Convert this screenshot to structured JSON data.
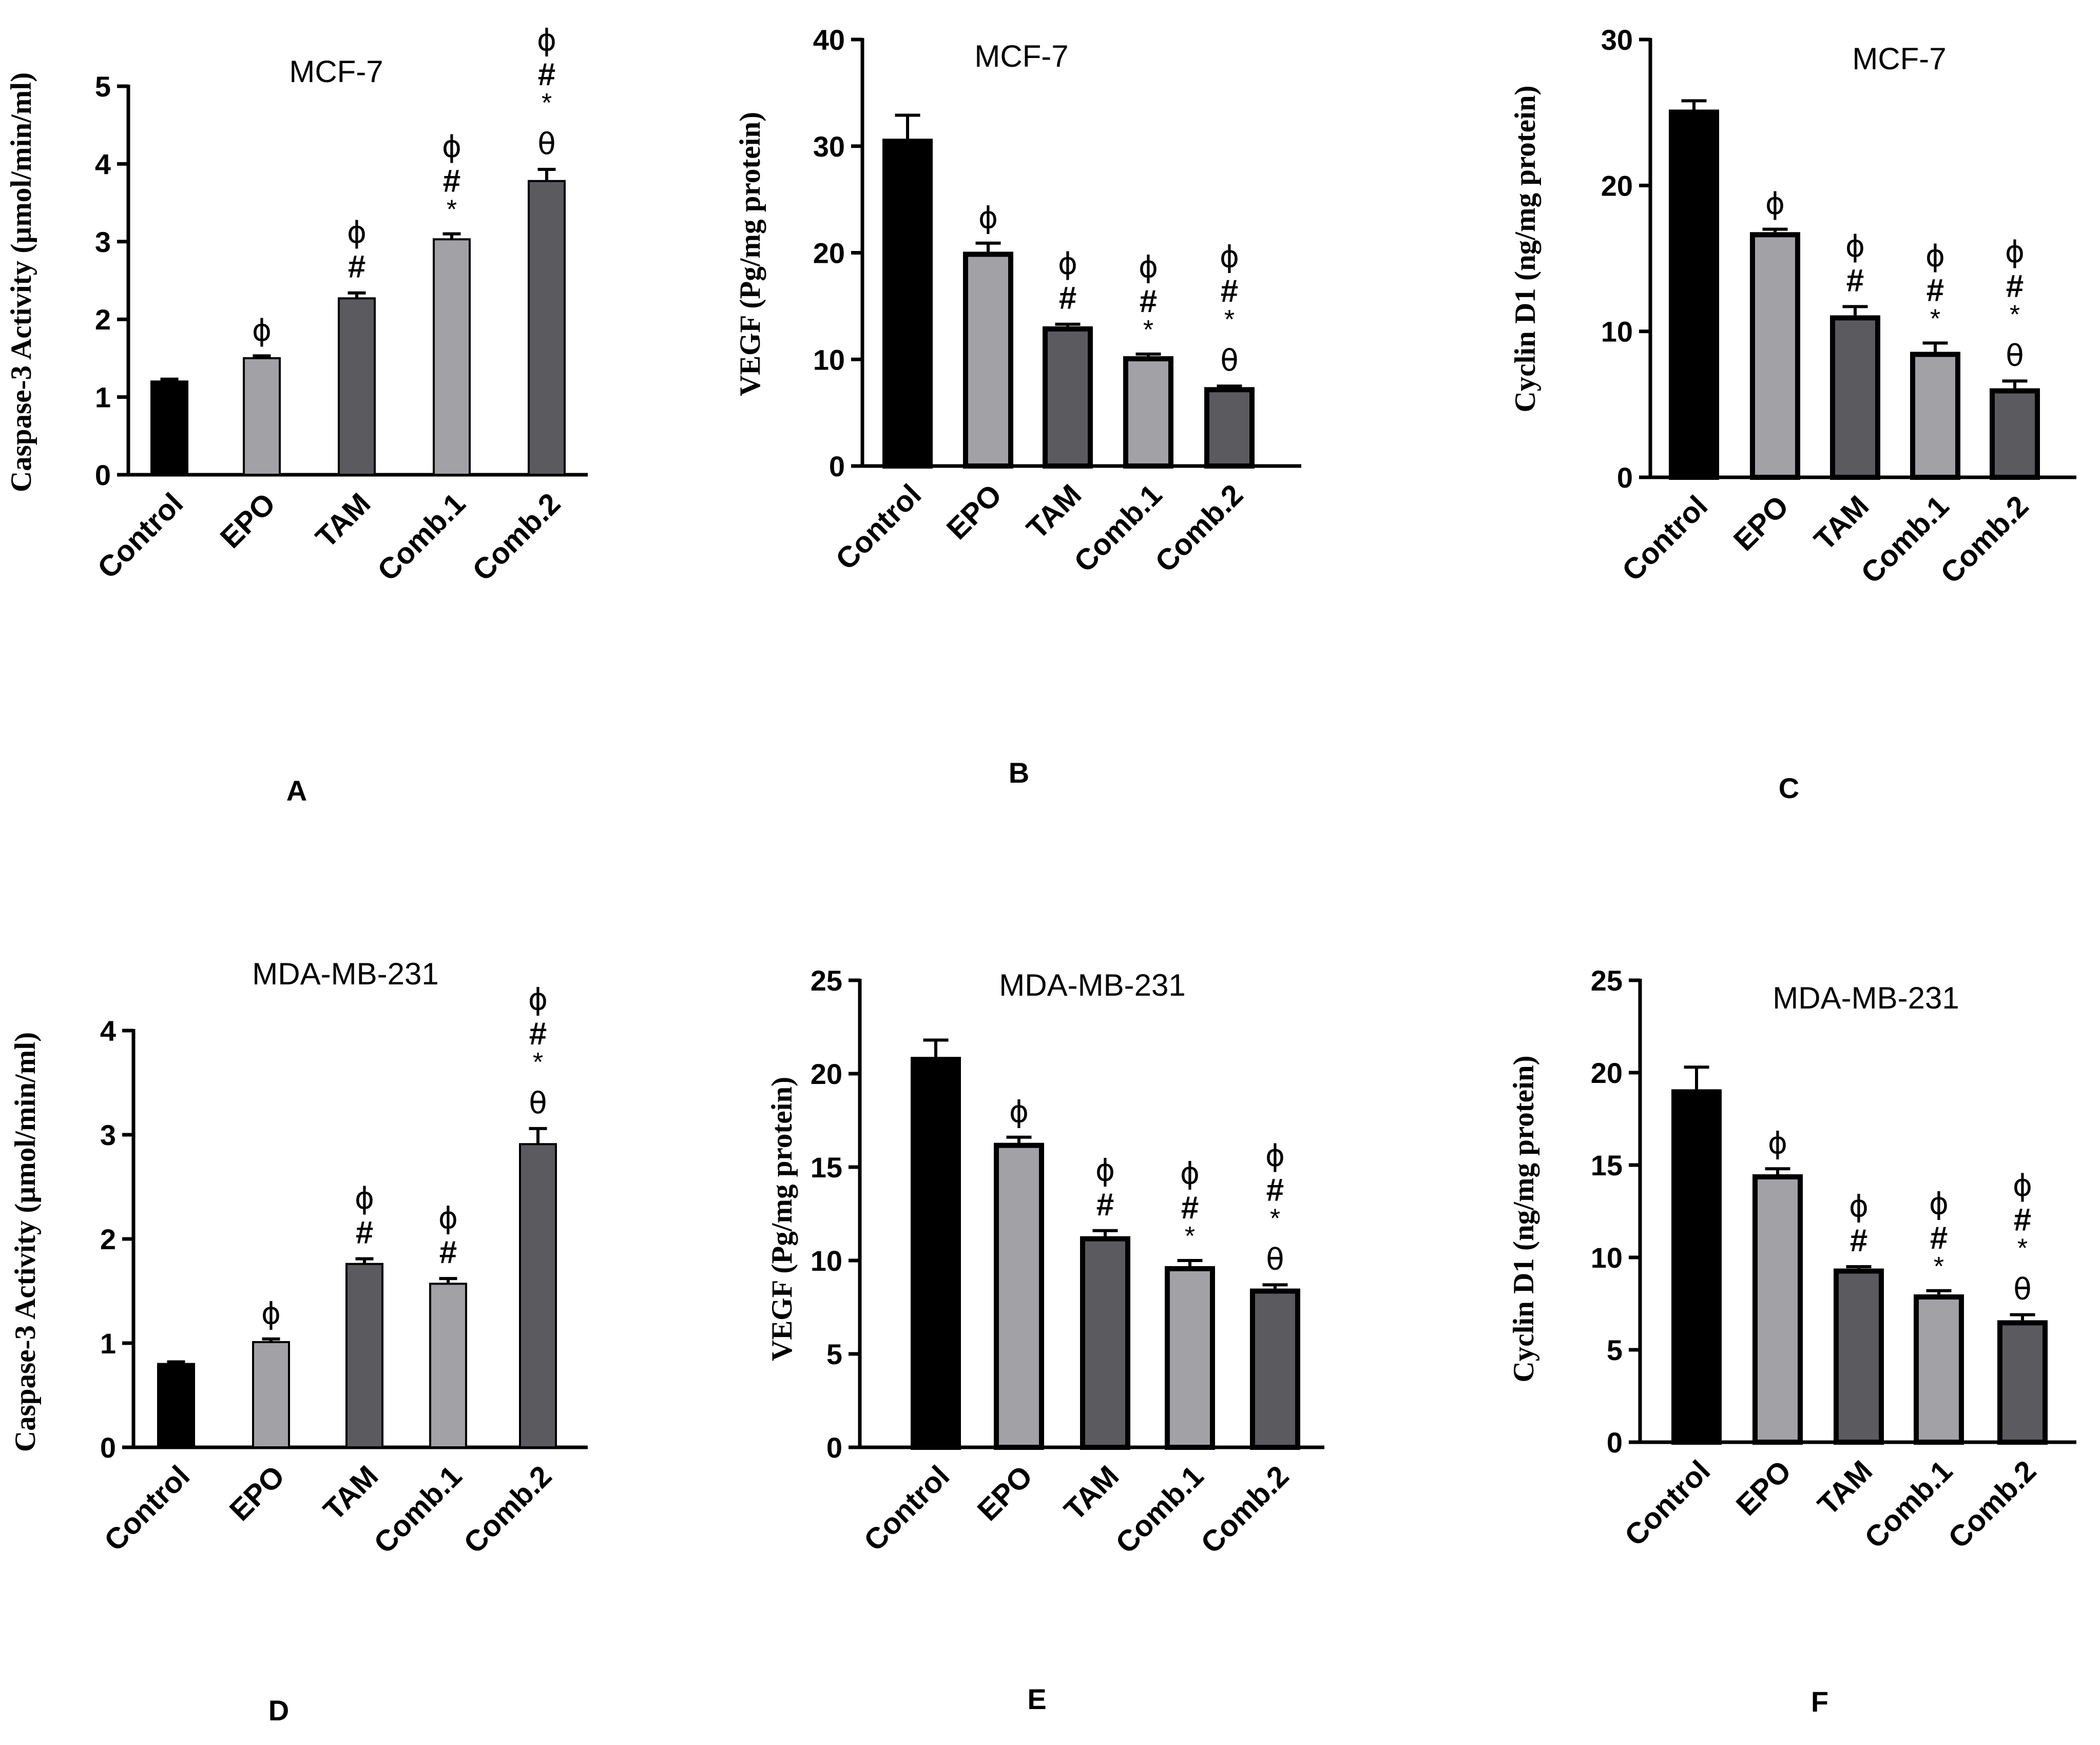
{
  "figure": {
    "categories": [
      "Control",
      "EPO",
      "TAM",
      "Comb.1",
      "Comb.2"
    ],
    "bar_colors": [
      "#000000",
      "#a1a1a6",
      "#5b5b5f",
      "#a1a1a6",
      "#5b5b5f"
    ]
  },
  "chart_data": [
    {
      "panel": "A",
      "type": "bar",
      "title": "MCF-7",
      "xlabel": "",
      "ylabel": "Caspase-3 Activity (µmol/min/ml)",
      "categories": [
        "Control",
        "EPO",
        "TAM",
        "Comb.1",
        "Comb.2"
      ],
      "values": [
        1.2,
        1.5,
        2.27,
        3.03,
        3.78
      ],
      "errors": [
        0.03,
        0.03,
        0.07,
        0.07,
        0.15
      ],
      "ylim": [
        0,
        5
      ],
      "yticks": [
        "0",
        "1",
        "2",
        "3",
        "4",
        "5"
      ],
      "annotations": [
        [],
        [
          "ϕ"
        ],
        [
          "ϕ",
          "#"
        ],
        [
          "ϕ",
          "#",
          "*"
        ],
        [
          "ϕ",
          "#",
          "*",
          "θ"
        ]
      ]
    },
    {
      "panel": "B",
      "type": "bar",
      "title": "MCF-7",
      "xlabel": "",
      "ylabel": "VEGF (Pg/mg protein)",
      "categories": [
        "Control",
        "EPO",
        "TAM",
        "Comb.1",
        "Comb.2"
      ],
      "values": [
        30.7,
        20.1,
        13.1,
        10.3,
        7.4
      ],
      "errors": [
        2.2,
        0.8,
        0.2,
        0.2,
        0.1
      ],
      "ylim": [
        0,
        40
      ],
      "yticks": [
        "0",
        "10",
        "20",
        "30",
        "40"
      ],
      "annotations": [
        [],
        [
          "ϕ"
        ],
        [
          "ϕ",
          "#"
        ],
        [
          "ϕ",
          "#",
          "*"
        ],
        [
          "ϕ",
          "#",
          "*",
          "θ"
        ]
      ]
    },
    {
      "panel": "C",
      "type": "bar",
      "title": "MCF-7",
      "xlabel": "",
      "ylabel": "Cyclin D1 (ng/mg protein)",
      "categories": [
        "Control",
        "EPO",
        "TAM",
        "Comb.1",
        "Comb.2"
      ],
      "values": [
        25.2,
        16.8,
        11.1,
        8.6,
        6.1
      ],
      "errors": [
        0.6,
        0.2,
        0.6,
        0.6,
        0.5
      ],
      "ylim": [
        0,
        30
      ],
      "yticks": [
        "0",
        "10",
        "20",
        "30"
      ],
      "annotations": [
        [],
        [
          "ϕ"
        ],
        [
          "ϕ",
          "#"
        ],
        [
          "ϕ",
          "#",
          "*"
        ],
        [
          "ϕ",
          "#",
          "*",
          "θ"
        ]
      ]
    },
    {
      "panel": "D",
      "type": "bar",
      "title": "MDA-MB-231",
      "xlabel": "",
      "ylabel": "Caspase-3 Activity (µmol/min/ml)",
      "categories": [
        "Control",
        "EPO",
        "TAM",
        "Comb.1",
        "Comb.2"
      ],
      "values": [
        0.8,
        1.01,
        1.76,
        1.57,
        2.91
      ],
      "errors": [
        0.02,
        0.03,
        0.05,
        0.05,
        0.15
      ],
      "ylim": [
        0,
        4
      ],
      "yticks": [
        "0",
        "1",
        "2",
        "3",
        "4"
      ],
      "annotations": [
        [],
        [
          "ϕ"
        ],
        [
          "ϕ",
          "#"
        ],
        [
          "ϕ",
          "#"
        ],
        [
          "ϕ",
          "#",
          "*",
          "θ"
        ]
      ]
    },
    {
      "panel": "E",
      "type": "bar",
      "title": "MDA-MB-231",
      "xlabel": "",
      "ylabel": "VEGF (Pg/mg protein)",
      "categories": [
        "Control",
        "EPO",
        "TAM",
        "Comb.1",
        "Comb.2"
      ],
      "values": [
        20.9,
        16.3,
        11.3,
        9.7,
        8.5
      ],
      "errors": [
        0.9,
        0.3,
        0.3,
        0.3,
        0.2
      ],
      "ylim": [
        0,
        25
      ],
      "yticks": [
        "0",
        "5",
        "10",
        "15",
        "20",
        "25"
      ],
      "annotations": [
        [],
        [
          "ϕ"
        ],
        [
          "ϕ",
          "#"
        ],
        [
          "ϕ",
          "#",
          "*"
        ],
        [
          "ϕ",
          "#",
          "*",
          "θ"
        ]
      ]
    },
    {
      "panel": "F",
      "type": "bar",
      "title": "MDA-MB-231",
      "xlabel": "",
      "ylabel": "Cyclin D1 (ng/mg protein)",
      "categories": [
        "Control",
        "EPO",
        "TAM",
        "Comb.1",
        "Comb.2"
      ],
      "values": [
        19.1,
        14.5,
        9.4,
        8.0,
        6.6
      ],
      "errors": [
        1.2,
        0.3,
        0.1,
        0.2,
        0.3
      ],
      "ylim": [
        0,
        25
      ],
      "yticks": [
        "0",
        "5",
        "10",
        "15",
        "20",
        "25"
      ],
      "annotations": [
        [],
        [
          "ϕ"
        ],
        [
          "ϕ",
          "#"
        ],
        [
          "ϕ",
          "#",
          "*"
        ],
        [
          "ϕ",
          "#",
          "*",
          "θ"
        ]
      ]
    }
  ]
}
